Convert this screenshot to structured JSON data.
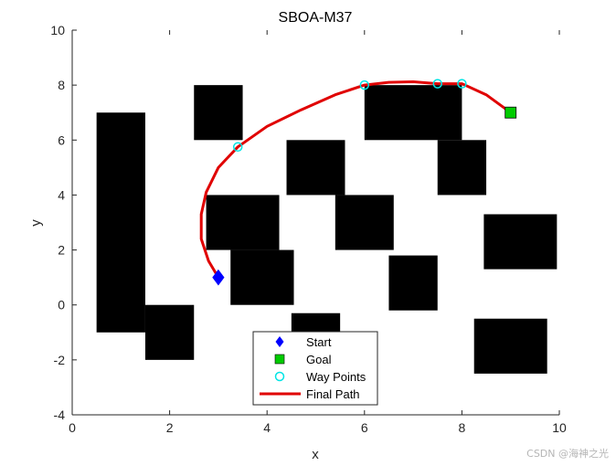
{
  "chart_data": {
    "type": "scatter",
    "title": "SBOA-M37",
    "xlabel": "x",
    "ylabel": "y",
    "xlim": [
      0,
      10
    ],
    "ylim": [
      -4,
      10
    ],
    "xticks": [
      0,
      2,
      4,
      6,
      8,
      10
    ],
    "yticks": [
      -4,
      -2,
      0,
      2,
      4,
      6,
      8,
      10
    ],
    "grid": false,
    "legend_position": "bottom-center",
    "obstacles": [
      {
        "x0": 0.5,
        "x1": 1.5,
        "y0": -1.0,
        "y1": 7.0
      },
      {
        "x0": 1.5,
        "x1": 2.5,
        "y0": -2.0,
        "y1": 0.0
      },
      {
        "x0": 2.5,
        "x1": 3.5,
        "y0": 6.0,
        "y1": 8.0
      },
      {
        "x0": 2.75,
        "x1": 4.25,
        "y0": 2.0,
        "y1": 4.0
      },
      {
        "x0": 3.25,
        "x1": 4.55,
        "y0": 0.0,
        "y1": 2.0
      },
      {
        "x0": 4.4,
        "x1": 5.6,
        "y0": 4.0,
        "y1": 6.0
      },
      {
        "x0": 5.4,
        "x1": 6.6,
        "y0": 2.0,
        "y1": 4.0
      },
      {
        "x0": 4.5,
        "x1": 5.5,
        "y0": -1.0,
        "y1": -0.3
      },
      {
        "x0": 6.0,
        "x1": 8.0,
        "y0": 6.0,
        "y1": 8.0
      },
      {
        "x0": 7.5,
        "x1": 8.5,
        "y0": 4.0,
        "y1": 6.0
      },
      {
        "x0": 6.5,
        "x1": 7.5,
        "y0": -0.2,
        "y1": 1.8
      },
      {
        "x0": 8.45,
        "x1": 9.95,
        "y0": 1.3,
        "y1": 3.3
      },
      {
        "x0": 8.25,
        "x1": 9.75,
        "y0": -2.5,
        "y1": -0.5
      }
    ],
    "series": [
      {
        "name": "Start",
        "marker": "diamond",
        "color": "#0000ff",
        "points": [
          {
            "x": 3.0,
            "y": 1.0
          }
        ]
      },
      {
        "name": "Goal",
        "marker": "square",
        "color": "#00cc00",
        "points": [
          {
            "x": 9.0,
            "y": 7.0
          }
        ]
      },
      {
        "name": "Way Points",
        "marker": "circle",
        "color": "#00e5e5",
        "points": [
          {
            "x": 3.4,
            "y": 5.75
          },
          {
            "x": 6.0,
            "y": 8.0
          },
          {
            "x": 7.5,
            "y": 8.05
          },
          {
            "x": 8.0,
            "y": 8.05
          }
        ]
      },
      {
        "name": "Final Path",
        "marker": "line",
        "color": "#e00000",
        "points": [
          {
            "x": 3.0,
            "y": 1.0
          },
          {
            "x": 2.8,
            "y": 1.6
          },
          {
            "x": 2.65,
            "y": 2.4
          },
          {
            "x": 2.65,
            "y": 3.3
          },
          {
            "x": 2.75,
            "y": 4.1
          },
          {
            "x": 3.0,
            "y": 5.0
          },
          {
            "x": 3.4,
            "y": 5.75
          },
          {
            "x": 4.0,
            "y": 6.5
          },
          {
            "x": 4.7,
            "y": 7.1
          },
          {
            "x": 5.4,
            "y": 7.65
          },
          {
            "x": 6.0,
            "y": 8.0
          },
          {
            "x": 6.5,
            "y": 8.1
          },
          {
            "x": 7.0,
            "y": 8.12
          },
          {
            "x": 7.5,
            "y": 8.05
          },
          {
            "x": 8.0,
            "y": 8.05
          },
          {
            "x": 8.5,
            "y": 7.65
          },
          {
            "x": 9.0,
            "y": 7.0
          }
        ]
      }
    ],
    "colors": {
      "obstacle": "#000000",
      "axis": "#262626"
    }
  },
  "watermark": "CSDN @海神之光"
}
